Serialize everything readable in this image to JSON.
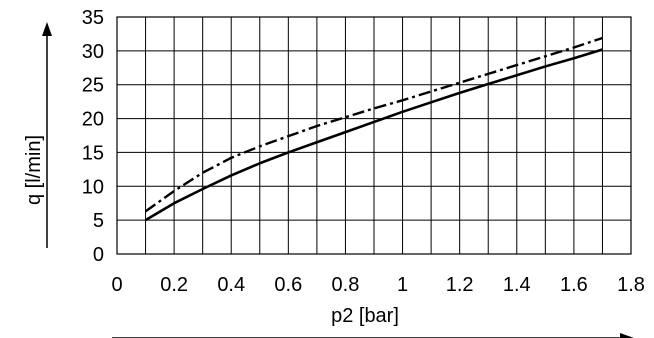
{
  "chart_data": {
    "type": "line",
    "xlabel": "p2 [bar]",
    "ylabel": "q [l/min]",
    "xlim": [
      0,
      1.8
    ],
    "ylim": [
      0,
      35
    ],
    "grid": true,
    "x_ticks": [
      0,
      0.2,
      0.4,
      0.6,
      0.8,
      1,
      1.2,
      1.4,
      1.6,
      1.8
    ],
    "x_tick_labels": [
      "0",
      "0.2",
      "0.4",
      "0.6",
      "0.8",
      "1",
      "1.2",
      "1.4",
      "1.6",
      "1.8"
    ],
    "y_ticks": [
      0,
      5,
      10,
      15,
      20,
      25,
      30,
      35
    ],
    "y_tick_labels": [
      "0",
      "5",
      "10",
      "15",
      "20",
      "25",
      "30",
      "35"
    ],
    "series": [
      {
        "line_style": "solid",
        "x": [
          0.1,
          0.2,
          0.3,
          0.4,
          0.5,
          0.6,
          0.7,
          0.8,
          0.9,
          1.0,
          1.1,
          1.2,
          1.3,
          1.4,
          1.5,
          1.6,
          1.7
        ],
        "y": [
          5,
          7.5,
          9.6,
          11.6,
          13.4,
          15,
          16.5,
          18,
          19.5,
          21,
          22.4,
          23.8,
          25.1,
          26.4,
          27.7,
          28.9,
          30.2
        ]
      },
      {
        "line_style": "dash-dot",
        "x": [
          0.1,
          0.2,
          0.3,
          0.4,
          0.5,
          0.6,
          0.7,
          0.8,
          0.9,
          1.0,
          1.1,
          1.2,
          1.3,
          1.4,
          1.5,
          1.6,
          1.7
        ],
        "y": [
          6.3,
          9.3,
          12,
          14.2,
          15.9,
          17.4,
          18.9,
          20.2,
          21.5,
          22.7,
          24,
          25.3,
          26.6,
          27.9,
          29.2,
          30.5,
          31.9
        ]
      }
    ]
  }
}
